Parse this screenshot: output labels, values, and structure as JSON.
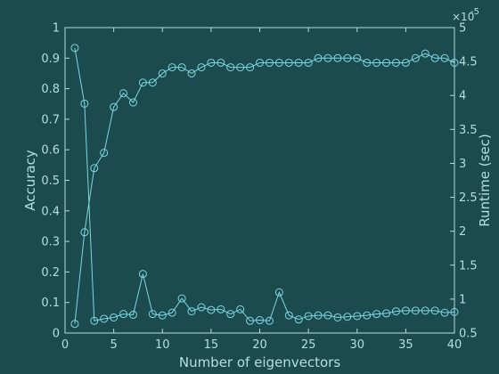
{
  "colors": {
    "background": "#1b4a4f",
    "foreground": "#b4dfe0",
    "series": "#7fd8e0"
  },
  "chart_data": {
    "type": "line",
    "xlabel": "Number of eigenvectors",
    "ylabel_left": "Accuracy",
    "ylabel_right": "Runtime (sec)",
    "right_axis_multiplier": "×10",
    "right_axis_exponent": "-5",
    "xlim": [
      0,
      40
    ],
    "ylim_left": [
      0,
      1
    ],
    "ylim_right": [
      0.5,
      5
    ],
    "x_ticks": [
      "0",
      "5",
      "10",
      "15",
      "20",
      "25",
      "30",
      "35",
      "40"
    ],
    "y_left_ticks": [
      "0",
      "0.1",
      "0.2",
      "0.3",
      "0.4",
      "0.5",
      "0.6",
      "0.7",
      "0.8",
      "0.9",
      "1"
    ],
    "y_right_ticks": [
      "0.5",
      "1",
      "1.5",
      "2",
      "2.5",
      "3",
      "3.5",
      "4",
      "4.5",
      "5"
    ],
    "x": [
      1,
      2,
      3,
      4,
      5,
      6,
      7,
      8,
      9,
      10,
      11,
      12,
      13,
      14,
      15,
      16,
      17,
      18,
      19,
      20,
      21,
      22,
      23,
      24,
      25,
      26,
      27,
      28,
      29,
      30,
      31,
      32,
      33,
      34,
      35,
      36,
      37,
      38,
      39,
      40
    ],
    "series": [
      {
        "axis": "left",
        "values": [
          0.03,
          0.33,
          0.54,
          0.59,
          0.74,
          0.785,
          0.755,
          0.82,
          0.82,
          0.85,
          0.87,
          0.87,
          0.85,
          0.87,
          0.885,
          0.885,
          0.87,
          0.87,
          0.87,
          0.885,
          0.885,
          0.885,
          0.885,
          0.885,
          0.885,
          0.9,
          0.9,
          0.9,
          0.9,
          0.9,
          0.885,
          0.885,
          0.885,
          0.885,
          0.885,
          0.9,
          0.915,
          0.9,
          0.9,
          0.885
        ]
      },
      {
        "axis": "right",
        "values": [
          4.7,
          3.88,
          0.68,
          0.71,
          0.73,
          0.78,
          0.77,
          1.37,
          0.78,
          0.76,
          0.8,
          1.01,
          0.82,
          0.88,
          0.84,
          0.85,
          0.78,
          0.85,
          0.68,
          0.69,
          0.68,
          1.1,
          0.76,
          0.7,
          0.75,
          0.76,
          0.76,
          0.73,
          0.74,
          0.75,
          0.76,
          0.78,
          0.79,
          0.82,
          0.83,
          0.83,
          0.83,
          0.83,
          0.8,
          0.81
        ]
      }
    ]
  }
}
